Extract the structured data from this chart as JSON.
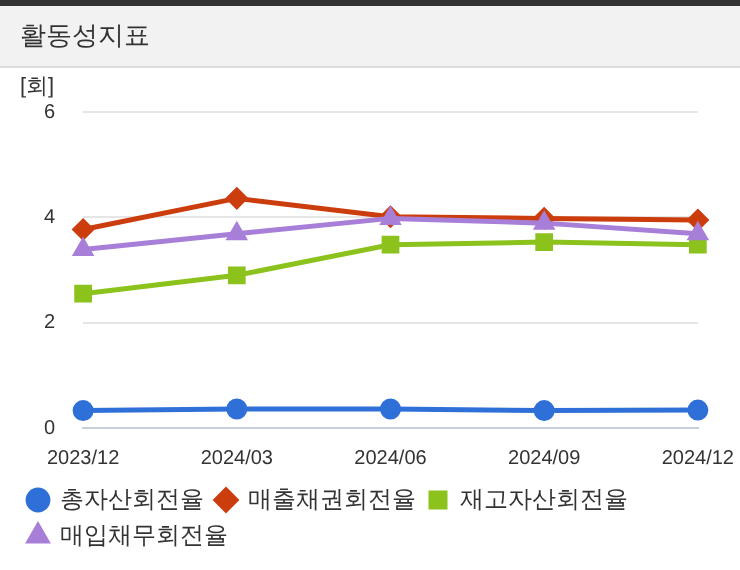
{
  "chart_data": {
    "type": "line",
    "title": "활동성지표",
    "ylabel": "[회]",
    "categories": [
      "2023/12",
      "2024/03",
      "2024/06",
      "2024/09",
      "2024/12"
    ],
    "series": [
      {
        "name": "총자산회전율",
        "color": "#2f6fd8",
        "marker": "circle",
        "values": [
          0.33,
          0.36,
          0.36,
          0.33,
          0.34
        ]
      },
      {
        "name": "매출채권회전율",
        "color": "#cc3d0e",
        "marker": "diamond",
        "values": [
          3.77,
          4.36,
          4.01,
          3.98,
          3.95
        ]
      },
      {
        "name": "재고자산회전율",
        "color": "#8cc21c",
        "marker": "square",
        "values": [
          2.55,
          2.9,
          3.48,
          3.53,
          3.48
        ]
      },
      {
        "name": "매입채무회전율",
        "color": "#a77fd8",
        "marker": "triangle",
        "values": [
          3.39,
          3.69,
          3.98,
          3.89,
          3.69
        ]
      }
    ],
    "ylim": [
      0,
      6
    ],
    "yticks": [
      0,
      2,
      4,
      6
    ],
    "grid": "y",
    "legend": "bottom",
    "line_style": "solid"
  }
}
